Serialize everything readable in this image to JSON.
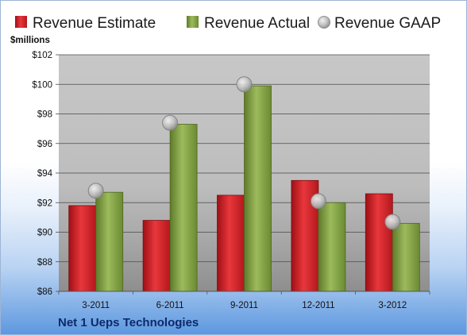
{
  "caption": "Net 1 Ueps Technologies",
  "colors": {
    "estimate": "#d9262b",
    "actual": "#88a84a",
    "gaap": "#b8b8b8"
  },
  "chart_data": {
    "type": "bar",
    "ylabel": "$millions",
    "ylim": [
      86,
      102
    ],
    "yticks": [
      86,
      88,
      90,
      92,
      94,
      96,
      98,
      100,
      102
    ],
    "ytick_labels": [
      "$86",
      "$88",
      "$90",
      "$92",
      "$94",
      "$96",
      "$98",
      "$100",
      "$102"
    ],
    "grid": true,
    "legend_position": "top",
    "categories": [
      "3-2011",
      "6-2011",
      "9-2011",
      "12-2011",
      "3-2012"
    ],
    "series": [
      {
        "name": "Revenue Estimate",
        "kind": "bar",
        "values": [
          91.8,
          90.8,
          92.5,
          93.5,
          92.6
        ]
      },
      {
        "name": "Revenue Actual",
        "kind": "bar",
        "values": [
          92.7,
          97.3,
          99.9,
          92.0,
          90.6
        ]
      },
      {
        "name": "Revenue GAAP",
        "kind": "marker",
        "values": [
          92.8,
          97.4,
          100.0,
          92.1,
          90.7
        ]
      }
    ]
  }
}
